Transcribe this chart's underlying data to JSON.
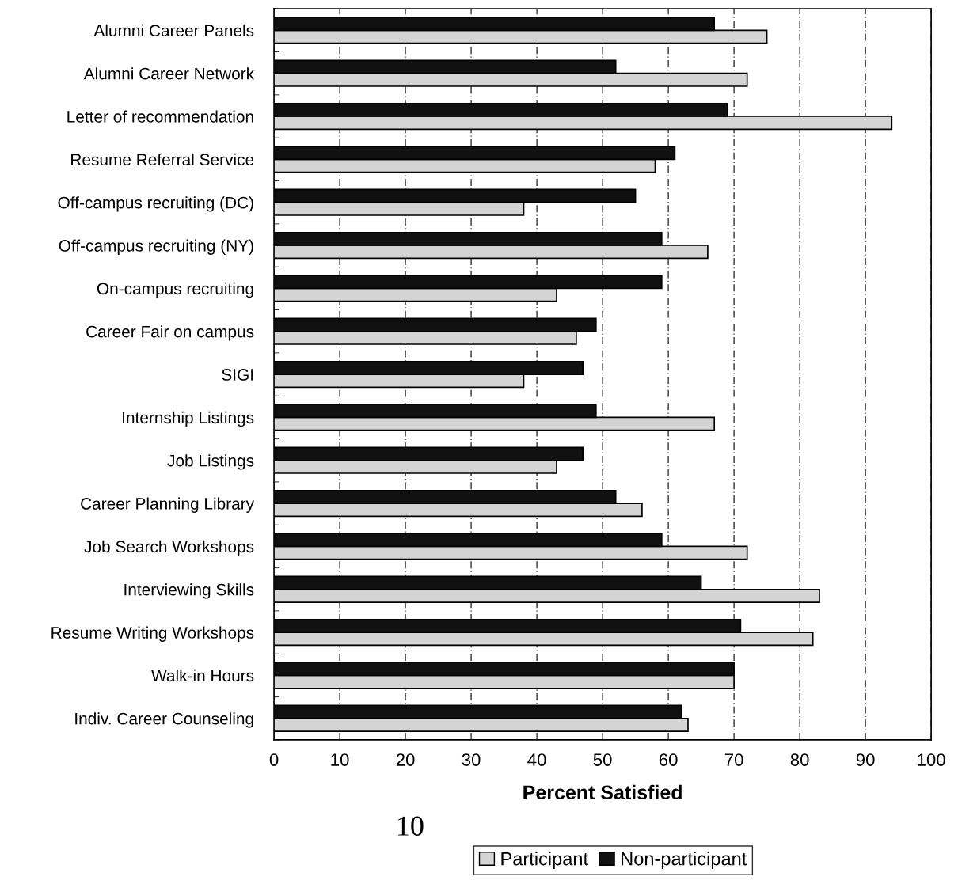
{
  "chart_data": {
    "type": "bar",
    "orientation": "horizontal",
    "xlabel": "Percent Satisfied",
    "categories": [
      "Alumni Career Panels",
      "Alumni Career Network",
      "Letter of recommendation",
      "Resume Referral Service",
      "Off-campus recruiting (DC)",
      "Off-campus recruiting (NY)",
      "On-campus recruiting",
      "Career Fair on campus",
      "SIGI",
      "Internship Listings",
      "Job Listings",
      "Career Planning Library",
      "Job Search Workshops",
      "Interviewing Skills",
      "Resume Writing Workshops",
      "Walk-in Hours",
      "Indiv. Career Counseling"
    ],
    "series": [
      {
        "name": "Participant",
        "color": "#d4d4d4",
        "values": [
          75,
          72,
          94,
          58,
          38,
          66,
          43,
          46,
          38,
          67,
          43,
          56,
          72,
          83,
          82,
          70,
          63
        ]
      },
      {
        "name": "Non-participant",
        "color": "#111111",
        "values": [
          67,
          52,
          69,
          61,
          55,
          59,
          59,
          49,
          47,
          49,
          47,
          52,
          59,
          65,
          71,
          70,
          62
        ]
      }
    ],
    "xlim": [
      0,
      100
    ],
    "xticks": [
      0,
      10,
      20,
      30,
      40,
      50,
      60,
      70,
      80,
      90,
      100
    ],
    "grid": "x",
    "legend": "bottom",
    "annotations": [
      "10"
    ]
  }
}
